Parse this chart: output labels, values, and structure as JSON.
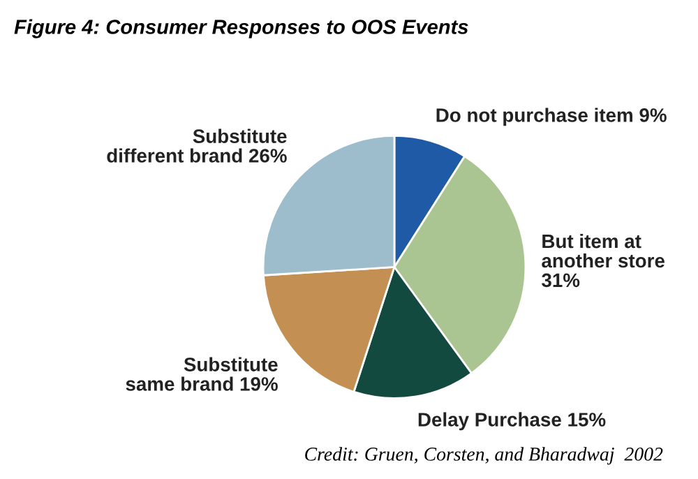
{
  "chart_data": {
    "type": "pie",
    "title": "Figure 4: Consumer Responses to OOS Events",
    "categories": [
      "Do not purchase item 9%",
      "But item at\nanother store\n31%",
      "Delay Purchase 15%",
      "Substitute\nsame brand 19%",
      "Substitute\ndifferent brand 26%"
    ],
    "values": [
      9,
      31,
      15,
      19,
      26
    ],
    "colors": [
      "#1f5aa6",
      "#aac592",
      "#134a40",
      "#c48f52",
      "#9dbdcc"
    ],
    "annotations": [
      "Credit: Gruen, Corsten, and Bharadwaj  2002"
    ]
  }
}
